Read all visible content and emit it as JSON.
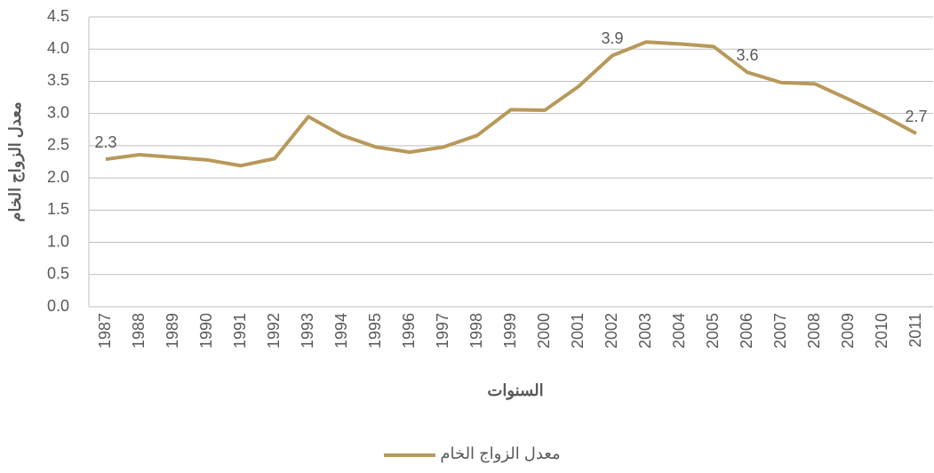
{
  "chart_data": {
    "type": "line",
    "y_label": "معدل الزواج الخام",
    "x_label": "السنوات",
    "categories": [
      "1987",
      "1988",
      "1989",
      "1990",
      "1991",
      "1992",
      "1993",
      "1994",
      "1995",
      "1996",
      "1997",
      "1998",
      "1999",
      "2000",
      "2001",
      "2002",
      "2003",
      "2004",
      "2005",
      "2006",
      "2007",
      "2008",
      "2009",
      "2010",
      "2011"
    ],
    "series": [
      {
        "name": "معدل الزواج الخام",
        "color": "#b8995a",
        "values": [
          2.29,
          2.36,
          2.32,
          2.28,
          2.19,
          2.3,
          2.95,
          2.66,
          2.48,
          2.4,
          2.48,
          2.66,
          3.06,
          3.05,
          3.42,
          3.9,
          4.11,
          4.08,
          4.04,
          3.64,
          3.48,
          3.46,
          3.22,
          2.97,
          2.69
        ],
        "value_labels": [
          "2.3",
          null,
          null,
          null,
          null,
          null,
          null,
          null,
          null,
          null,
          null,
          null,
          null,
          null,
          null,
          "3.9",
          null,
          null,
          null,
          "3.6",
          null,
          null,
          null,
          null,
          "2.7"
        ]
      }
    ],
    "ylim": [
      0,
      4.5
    ],
    "yticks": [
      {
        "value": 0,
        "label": "0.0"
      },
      0.5,
      {
        "value": 1,
        "label": "1.0"
      },
      1.5,
      {
        "value": 2,
        "label": "2.0"
      },
      2.5,
      {
        "value": 3,
        "label": "3.0"
      },
      3.5,
      {
        "value": 4,
        "label": "4.0"
      },
      4.5
    ],
    "grid": true,
    "legend": "bottom"
  }
}
